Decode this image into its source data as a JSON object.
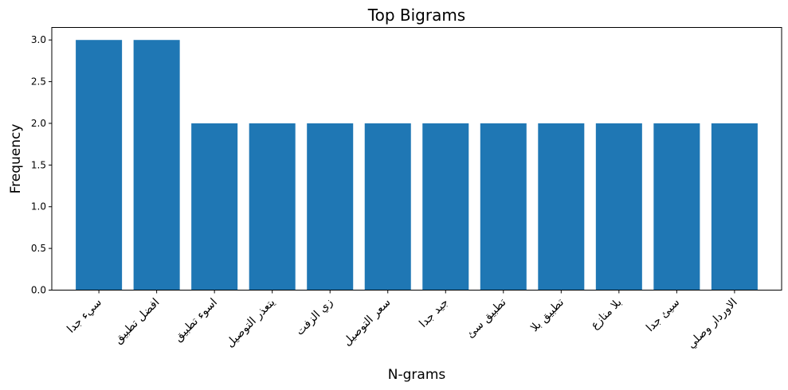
{
  "chart_data": {
    "type": "bar",
    "title": "Top Bigrams",
    "xlabel": "N-grams",
    "ylabel": "Frequency",
    "categories": [
      "سيء جدا",
      "افضل تطبيق",
      "اسوء تطبيق",
      "يتعذر التوصيل",
      "زي الزفت",
      "سعر التوصيل",
      "جيد جدا",
      "تطبيق سئ",
      "تطبيق بلا",
      "بلا منازع",
      "سيئ جدا",
      "الاوردار وصلي"
    ],
    "values": [
      3,
      3,
      2,
      2,
      2,
      2,
      2,
      2,
      2,
      2,
      2,
      2
    ],
    "ylim": [
      0,
      3.15
    ],
    "yticks": [
      "0.0",
      "0.5",
      "1.0",
      "1.5",
      "2.0",
      "2.5",
      "3.0"
    ],
    "bar_color": "#1f77b4",
    "grid": false,
    "legend": "none"
  }
}
